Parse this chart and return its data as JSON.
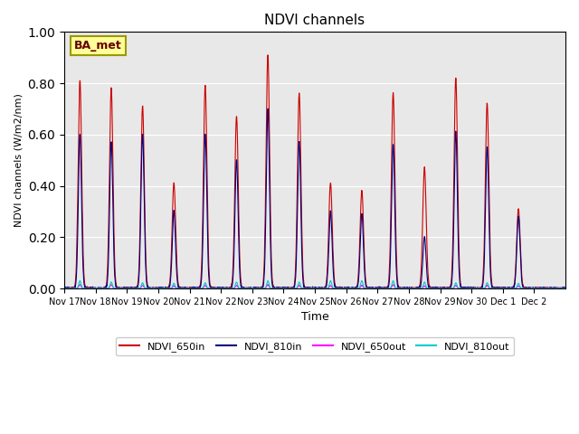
{
  "title": "NDVI channels",
  "ylabel": "NDVI channels (W/m2/nm)",
  "xlabel": "Time",
  "annotation": "BA_met",
  "ylim": [
    0.0,
    1.0
  ],
  "background_color": "#e8e8e8",
  "line_colors": {
    "NDVI_650in": "#cc0000",
    "NDVI_810in": "#000080",
    "NDVI_650out": "#ff00ff",
    "NDVI_810out": "#00cccc"
  },
  "xtick_labels": [
    "Nov 17",
    "Nov 18",
    "Nov 19",
    "Nov 20",
    "Nov 21",
    "Nov 22",
    "Nov 23",
    "Nov 24",
    "Nov 25",
    "Nov 26",
    "Nov 27",
    "Nov 28",
    "Nov 29",
    "Nov 30",
    "Dec 1",
    "Dec 2"
  ],
  "daily_peaks_650in": [
    0.81,
    0.78,
    0.71,
    0.41,
    0.79,
    0.67,
    0.91,
    0.76,
    0.41,
    0.38,
    0.76,
    0.47,
    0.82,
    0.72,
    0.31,
    0.0
  ],
  "daily_peaks_810in": [
    0.6,
    0.57,
    0.6,
    0.3,
    0.6,
    0.5,
    0.7,
    0.57,
    0.3,
    0.29,
    0.56,
    0.2,
    0.61,
    0.55,
    0.28,
    0.0
  ],
  "daily_peaks_650out": [
    0.015,
    0.015,
    0.012,
    0.01,
    0.012,
    0.012,
    0.015,
    0.012,
    0.012,
    0.012,
    0.015,
    0.01,
    0.012,
    0.012,
    0.01,
    0.0
  ],
  "daily_peaks_810out": [
    0.03,
    0.025,
    0.022,
    0.02,
    0.022,
    0.025,
    0.03,
    0.025,
    0.03,
    0.03,
    0.03,
    0.025,
    0.022,
    0.022,
    0.02,
    0.0
  ],
  "n_days": 16,
  "pts_per_day": 288
}
